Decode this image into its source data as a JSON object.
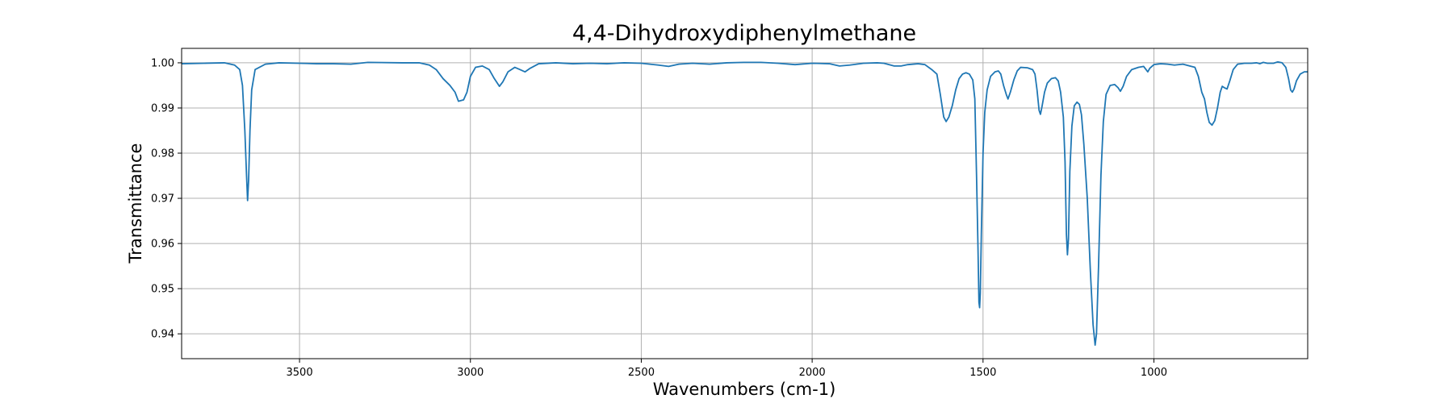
{
  "chart_data": {
    "type": "line",
    "title": "4,4-Dihydroxydiphenylmethane",
    "xlabel": "Wavenumbers (cm-1)",
    "ylabel": "Transmittance",
    "xlim": [
      3845,
      550
    ],
    "ylim": [
      0.9345,
      1.0032
    ],
    "x_reversed": true,
    "grid": true,
    "xticks": [
      3500,
      3000,
      2500,
      2000,
      1500,
      1000
    ],
    "yticks": [
      0.94,
      0.95,
      0.96,
      0.97,
      0.98,
      0.99,
      1.0
    ],
    "ytick_labels": [
      "0.94",
      "0.95",
      "0.96",
      "0.97",
      "0.98",
      "0.99",
      "1.00"
    ],
    "series": [
      {
        "color": "#1f77b4",
        "points": [
          [
            3845,
            0.9998
          ],
          [
            3780,
            0.9999
          ],
          [
            3720,
            1.0
          ],
          [
            3690,
            0.9995
          ],
          [
            3675,
            0.9985
          ],
          [
            3667,
            0.995
          ],
          [
            3660,
            0.985
          ],
          [
            3655,
            0.975
          ],
          [
            3652,
            0.9695
          ],
          [
            3649,
            0.974
          ],
          [
            3645,
            0.985
          ],
          [
            3640,
            0.994
          ],
          [
            3630,
            0.9985
          ],
          [
            3600,
            0.9997
          ],
          [
            3560,
            1.0
          ],
          [
            3500,
            0.9999
          ],
          [
            3450,
            0.9998
          ],
          [
            3400,
            0.9998
          ],
          [
            3350,
            0.9997
          ],
          [
            3300,
            1.0001
          ],
          [
            3200,
            1.0
          ],
          [
            3150,
            1.0
          ],
          [
            3120,
            0.9995
          ],
          [
            3100,
            0.9985
          ],
          [
            3080,
            0.9965
          ],
          [
            3060,
            0.995
          ],
          [
            3045,
            0.9935
          ],
          [
            3035,
            0.9915
          ],
          [
            3020,
            0.9918
          ],
          [
            3010,
            0.9935
          ],
          [
            3000,
            0.997
          ],
          [
            2985,
            0.999
          ],
          [
            2965,
            0.9993
          ],
          [
            2945,
            0.9985
          ],
          [
            2930,
            0.9965
          ],
          [
            2915,
            0.9948
          ],
          [
            2905,
            0.9958
          ],
          [
            2890,
            0.998
          ],
          [
            2870,
            0.999
          ],
          [
            2855,
            0.9985
          ],
          [
            2840,
            0.998
          ],
          [
            2825,
            0.9988
          ],
          [
            2800,
            0.9998
          ],
          [
            2750,
            1.0
          ],
          [
            2700,
            0.9998
          ],
          [
            2650,
            0.9999
          ],
          [
            2600,
            0.9998
          ],
          [
            2550,
            1.0
          ],
          [
            2500,
            0.9999
          ],
          [
            2450,
            0.9995
          ],
          [
            2420,
            0.9992
          ],
          [
            2390,
            0.9997
          ],
          [
            2350,
            0.9999
          ],
          [
            2300,
            0.9997
          ],
          [
            2250,
            1.0
          ],
          [
            2200,
            1.0001
          ],
          [
            2150,
            1.0001
          ],
          [
            2100,
            0.9999
          ],
          [
            2050,
            0.9996
          ],
          [
            2000,
            0.9999
          ],
          [
            1950,
            0.9998
          ],
          [
            1920,
            0.9993
          ],
          [
            1890,
            0.9995
          ],
          [
            1850,
            0.9999
          ],
          [
            1810,
            1.0
          ],
          [
            1790,
            0.9999
          ],
          [
            1760,
            0.9993
          ],
          [
            1740,
            0.9993
          ],
          [
            1720,
            0.9996
          ],
          [
            1690,
            0.9998
          ],
          [
            1670,
            0.9996
          ],
          [
            1650,
            0.9985
          ],
          [
            1635,
            0.9975
          ],
          [
            1625,
            0.993
          ],
          [
            1615,
            0.988
          ],
          [
            1608,
            0.987
          ],
          [
            1600,
            0.988
          ],
          [
            1590,
            0.9905
          ],
          [
            1580,
            0.994
          ],
          [
            1570,
            0.9965
          ],
          [
            1560,
            0.9975
          ],
          [
            1550,
            0.9978
          ],
          [
            1540,
            0.9975
          ],
          [
            1530,
            0.9962
          ],
          [
            1524,
            0.992
          ],
          [
            1519,
            0.975
          ],
          [
            1515,
            0.96
          ],
          [
            1512,
            0.947
          ],
          [
            1510,
            0.9458
          ],
          [
            1508,
            0.949
          ],
          [
            1505,
            0.962
          ],
          [
            1500,
            0.98
          ],
          [
            1495,
            0.989
          ],
          [
            1488,
            0.994
          ],
          [
            1478,
            0.997
          ],
          [
            1465,
            0.998
          ],
          [
            1455,
            0.9982
          ],
          [
            1448,
            0.9975
          ],
          [
            1440,
            0.995
          ],
          [
            1432,
            0.993
          ],
          [
            1427,
            0.992
          ],
          [
            1420,
            0.9935
          ],
          [
            1410,
            0.9962
          ],
          [
            1400,
            0.9982
          ],
          [
            1390,
            0.999
          ],
          [
            1370,
            0.9989
          ],
          [
            1355,
            0.9985
          ],
          [
            1348,
            0.9975
          ],
          [
            1342,
            0.994
          ],
          [
            1336,
            0.9895
          ],
          [
            1332,
            0.9886
          ],
          [
            1327,
            0.9905
          ],
          [
            1320,
            0.9935
          ],
          [
            1312,
            0.9955
          ],
          [
            1300,
            0.9965
          ],
          [
            1288,
            0.9967
          ],
          [
            1280,
            0.996
          ],
          [
            1273,
            0.9935
          ],
          [
            1265,
            0.988
          ],
          [
            1260,
            0.978
          ],
          [
            1256,
            0.962
          ],
          [
            1253,
            0.9575
          ],
          [
            1250,
            0.961
          ],
          [
            1246,
            0.976
          ],
          [
            1240,
            0.986
          ],
          [
            1233,
            0.9905
          ],
          [
            1225,
            0.9913
          ],
          [
            1218,
            0.9908
          ],
          [
            1212,
            0.9885
          ],
          [
            1205,
            0.982
          ],
          [
            1195,
            0.97
          ],
          [
            1186,
            0.954
          ],
          [
            1178,
            0.942
          ],
          [
            1172,
            0.9375
          ],
          [
            1168,
            0.94
          ],
          [
            1162,
            0.955
          ],
          [
            1155,
            0.975
          ],
          [
            1148,
            0.987
          ],
          [
            1140,
            0.993
          ],
          [
            1128,
            0.995
          ],
          [
            1115,
            0.9952
          ],
          [
            1105,
            0.9945
          ],
          [
            1098,
            0.9937
          ],
          [
            1090,
            0.9948
          ],
          [
            1080,
            0.997
          ],
          [
            1065,
            0.9985
          ],
          [
            1045,
            0.999
          ],
          [
            1030,
            0.9992
          ],
          [
            1023,
            0.9985
          ],
          [
            1018,
            0.998
          ],
          [
            1012,
            0.9988
          ],
          [
            1000,
            0.9996
          ],
          [
            980,
            0.9998
          ],
          [
            960,
            0.9997
          ],
          [
            940,
            0.9995
          ],
          [
            915,
            0.9997
          ],
          [
            895,
            0.9993
          ],
          [
            880,
            0.999
          ],
          [
            870,
            0.997
          ],
          [
            860,
            0.9935
          ],
          [
            852,
            0.992
          ],
          [
            845,
            0.989
          ],
          [
            838,
            0.9868
          ],
          [
            830,
            0.9862
          ],
          [
            822,
            0.9872
          ],
          [
            814,
            0.99
          ],
          [
            806,
            0.9935
          ],
          [
            800,
            0.9948
          ],
          [
            794,
            0.9945
          ],
          [
            786,
            0.9942
          ],
          [
            778,
            0.996
          ],
          [
            768,
            0.9985
          ],
          [
            755,
            0.9997
          ],
          [
            735,
            0.9999
          ],
          [
            715,
            0.9999
          ],
          [
            700,
            1.0
          ],
          [
            690,
            0.9998
          ],
          [
            680,
            1.0001
          ],
          [
            668,
            0.9999
          ],
          [
            650,
            0.9999
          ],
          [
            638,
            1.0002
          ],
          [
            625,
            1.0
          ],
          [
            614,
            0.999
          ],
          [
            606,
            0.9965
          ],
          [
            600,
            0.994
          ],
          [
            595,
            0.9935
          ],
          [
            590,
            0.9942
          ],
          [
            583,
            0.996
          ],
          [
            572,
            0.9975
          ],
          [
            560,
            0.998
          ],
          [
            550,
            0.998
          ]
        ]
      }
    ]
  }
}
